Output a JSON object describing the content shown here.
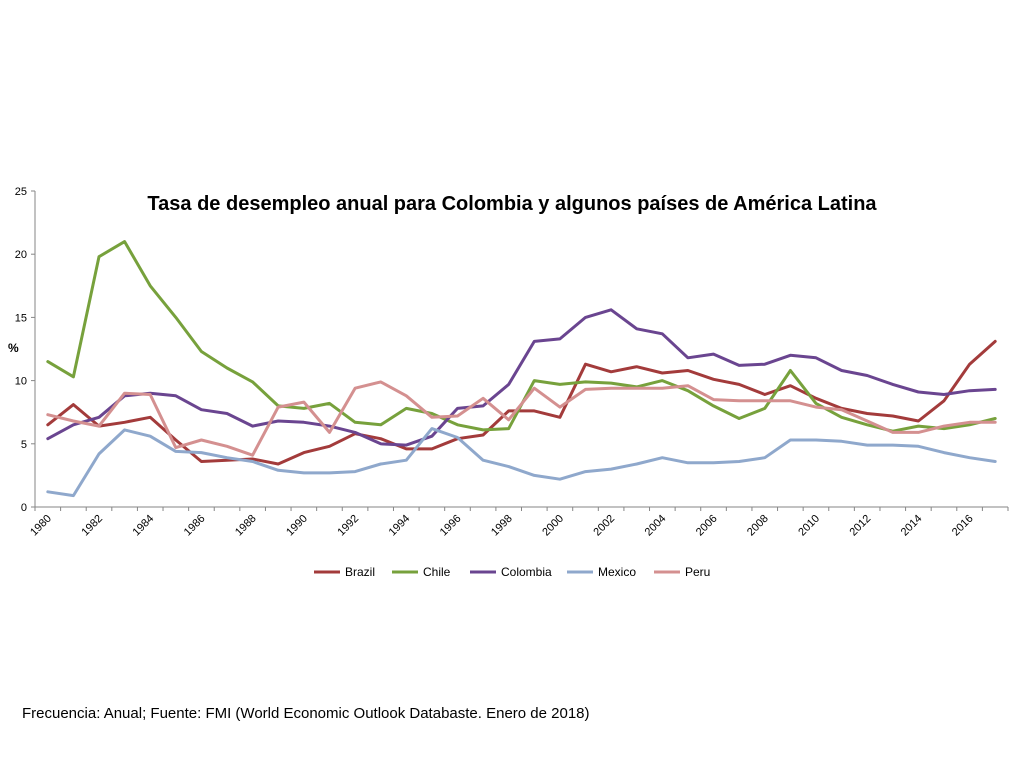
{
  "chart_data": {
    "type": "line",
    "title": "Tasa de desempleo anual para Colombia y algunos países de América Latina",
    "ylabel": "%",
    "xlabel": "",
    "ylim": [
      0,
      25
    ],
    "yticks": [
      "0",
      "5",
      "10",
      "15",
      "20",
      "25"
    ],
    "xlim": [
      1980,
      2017
    ],
    "xticks": [
      "1980",
      "1982",
      "1984",
      "1986",
      "1988",
      "1990",
      "1992",
      "1994",
      "1996",
      "1998",
      "2000",
      "2002",
      "2004",
      "2006",
      "2008",
      "2010",
      "2012",
      "2014",
      "2016"
    ],
    "grid": false,
    "legend_position": "bottom",
    "x": [
      1980,
      1981,
      1982,
      1983,
      1984,
      1985,
      1986,
      1987,
      1988,
      1989,
      1990,
      1991,
      1992,
      1993,
      1994,
      1995,
      1996,
      1997,
      1998,
      1999,
      2000,
      2001,
      2002,
      2003,
      2004,
      2005,
      2006,
      2007,
      2008,
      2009,
      2010,
      2011,
      2012,
      2013,
      2014,
      2015,
      2016,
      2017
    ],
    "series": [
      {
        "name": "Brazil",
        "color": "#a33b3b",
        "values": [
          6.5,
          8.1,
          6.4,
          6.7,
          7.1,
          5.3,
          3.6,
          3.7,
          3.8,
          3.4,
          4.3,
          4.8,
          5.8,
          5.4,
          4.6,
          4.6,
          5.4,
          5.7,
          7.6,
          7.6,
          7.1,
          11.3,
          10.7,
          11.1,
          10.6,
          10.8,
          10.1,
          9.7,
          8.9,
          9.6,
          8.6,
          7.8,
          7.4,
          7.2,
          6.8,
          8.4,
          11.3,
          13.1
        ]
      },
      {
        "name": "Chile",
        "color": "#77a13c",
        "values": [
          11.5,
          10.3,
          19.8,
          21.0,
          17.5,
          15.0,
          12.3,
          11.0,
          9.9,
          8.0,
          7.8,
          8.2,
          6.7,
          6.5,
          7.8,
          7.4,
          6.5,
          6.1,
          6.2,
          10.0,
          9.7,
          9.9,
          9.8,
          9.5,
          10.0,
          9.2,
          8.0,
          7.0,
          7.8,
          10.8,
          8.2,
          7.1,
          6.5,
          6.0,
          6.4,
          6.2,
          6.5,
          7.0
        ]
      },
      {
        "name": "Colombia",
        "color": "#6a4590",
        "values": [
          5.4,
          6.5,
          7.1,
          8.8,
          9.0,
          8.8,
          7.7,
          7.4,
          6.4,
          6.8,
          6.7,
          6.4,
          5.9,
          5.0,
          4.9,
          5.6,
          7.8,
          8.0,
          9.7,
          13.1,
          13.3,
          15.0,
          15.6,
          14.1,
          13.7,
          11.8,
          12.1,
          11.2,
          11.3,
          12.0,
          11.8,
          10.8,
          10.4,
          9.7,
          9.1,
          8.9,
          9.2,
          9.3
        ]
      },
      {
        "name": "Mexico",
        "color": "#8fa8cc",
        "values": [
          1.2,
          0.9,
          4.2,
          6.1,
          5.6,
          4.4,
          4.3,
          3.9,
          3.6,
          2.9,
          2.7,
          2.7,
          2.8,
          3.4,
          3.7,
          6.2,
          5.5,
          3.7,
          3.2,
          2.5,
          2.2,
          2.8,
          3.0,
          3.4,
          3.9,
          3.5,
          3.5,
          3.6,
          3.9,
          5.3,
          5.3,
          5.2,
          4.9,
          4.9,
          4.8,
          4.3,
          3.9,
          3.6
        ]
      },
      {
        "name": "Peru",
        "color": "#d49090",
        "values": [
          7.3,
          6.8,
          6.4,
          9.0,
          8.9,
          4.7,
          5.3,
          4.8,
          4.1,
          7.9,
          8.3,
          5.9,
          9.4,
          9.9,
          8.8,
          7.1,
          7.2,
          8.6,
          6.9,
          9.4,
          7.9,
          9.3,
          9.4,
          9.4,
          9.4,
          9.6,
          8.5,
          8.4,
          8.4,
          8.4,
          7.9,
          7.7,
          6.8,
          5.9,
          5.9,
          6.4,
          6.7,
          6.7
        ]
      }
    ]
  },
  "footer": {
    "source_text": "Frecuencia: Anual; Fuente: FMI (World Economic Outlook Databaste. Enero de 2018)"
  }
}
